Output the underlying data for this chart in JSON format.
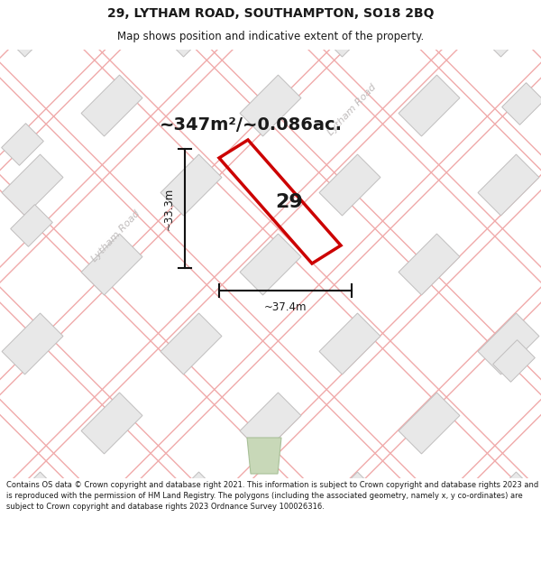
{
  "title_line1": "29, LYTHAM ROAD, SOUTHAMPTON, SO18 2BQ",
  "title_line2": "Map shows position and indicative extent of the property.",
  "area_text": "~347m²/~0.086ac.",
  "property_number": "29",
  "dim_vertical": "~33.3m",
  "dim_horizontal": "~37.4m",
  "road_label": "Lytham Road",
  "copyright_text": "Contains OS data © Crown copyright and database right 2021. This information is subject to Crown copyright and database rights 2023 and is reproduced with the permission of HM Land Registry. The polygons (including the associated geometry, namely x, y co-ordinates) are subject to Crown copyright and database rights 2023 Ordnance Survey 100026316.",
  "map_bg": "#ffffff",
  "building_fill": "#e8e8e8",
  "building_edge": "#c0bebe",
  "road_line_color": "#f0aaaa",
  "property_color": "#cc0000",
  "dim_line_color": "#111111",
  "road_label_color": "#c0bcbc",
  "green_color": "#c8d8b8",
  "title_bg": "#ffffff",
  "footer_bg": "#ffffff",
  "road_bg_color": "#f8f4f4"
}
